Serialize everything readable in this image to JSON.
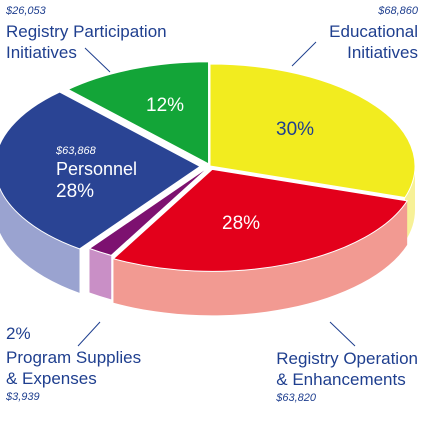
{
  "chart_data": {
    "type": "pie",
    "style": "3d-exploded",
    "slices": [
      {
        "name_lines": [
          "Educational",
          "Initiatives"
        ],
        "percent": 30,
        "percent_label": "30%",
        "amount": "$68,860",
        "color": "#f2ec1f",
        "side_color": "#f7f197"
      },
      {
        "name_lines": [
          "Registry Operation",
          "& Enhancements"
        ],
        "percent": 28,
        "percent_label": "28%",
        "amount": "$63,820",
        "color": "#e3001b",
        "side_color": "#f29a92"
      },
      {
        "name_lines": [
          "Program Supplies",
          "& Expenses"
        ],
        "percent": 2,
        "percent_label": "2%",
        "amount": "$3,939",
        "color": "#7d1170",
        "side_color": "#c98fc6"
      },
      {
        "name_lines": [
          "Personnel"
        ],
        "percent": 28,
        "percent_label": "28%",
        "amount": "$63,868",
        "color": "#2a4494",
        "side_color": "#9aa3d0"
      },
      {
        "name_lines": [
          "Registry Participation",
          "Initiatives"
        ],
        "percent": 12,
        "percent_label": "12%",
        "amount": "$26,053",
        "color": "#13a538",
        "side_color": "#8fd29f"
      }
    ]
  }
}
